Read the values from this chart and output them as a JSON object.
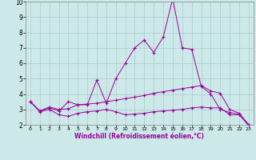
{
  "xlabel": "Windchill (Refroidissement éolien,°C)",
  "background_color": "#cce8e8",
  "line_color": "#990099",
  "grid_color": "#aacccc",
  "xlim": [
    -0.5,
    23.5
  ],
  "ylim": [
    2,
    10
  ],
  "xticks": [
    0,
    1,
    2,
    3,
    4,
    5,
    6,
    7,
    8,
    9,
    10,
    11,
    12,
    13,
    14,
    15,
    16,
    17,
    18,
    19,
    20,
    21,
    22,
    23
  ],
  "yticks": [
    2,
    3,
    4,
    5,
    6,
    7,
    8,
    9,
    10
  ],
  "line1_x": [
    0,
    1,
    2,
    3,
    4,
    5,
    6,
    7,
    8,
    9,
    10,
    11,
    12,
    13,
    14,
    15,
    16,
    17,
    18,
    19,
    20,
    21,
    22,
    23
  ],
  "line1_y": [
    3.5,
    2.9,
    3.1,
    2.9,
    3.5,
    3.3,
    3.3,
    4.9,
    3.4,
    5.0,
    6.0,
    7.0,
    7.5,
    6.7,
    7.7,
    10.2,
    7.0,
    6.9,
    4.5,
    4.0,
    3.0,
    2.8,
    2.7,
    2.0
  ],
  "line2_x": [
    0,
    1,
    2,
    3,
    4,
    5,
    6,
    7,
    8,
    9,
    10,
    11,
    12,
    13,
    14,
    15,
    16,
    17,
    18,
    19,
    20,
    21,
    22,
    23
  ],
  "line2_y": [
    3.5,
    2.9,
    3.15,
    3.0,
    3.05,
    3.3,
    3.35,
    3.4,
    3.5,
    3.6,
    3.7,
    3.8,
    3.9,
    4.05,
    4.15,
    4.25,
    4.35,
    4.45,
    4.55,
    4.2,
    4.05,
    3.0,
    2.75,
    2.0
  ],
  "line3_x": [
    0,
    1,
    2,
    3,
    4,
    5,
    6,
    7,
    8,
    9,
    10,
    11,
    12,
    13,
    14,
    15,
    16,
    17,
    18,
    19,
    20,
    21,
    22,
    23
  ],
  "line3_y": [
    3.5,
    2.85,
    3.0,
    2.65,
    2.55,
    2.75,
    2.85,
    2.9,
    3.0,
    2.85,
    2.65,
    2.7,
    2.75,
    2.85,
    2.9,
    2.95,
    3.0,
    3.1,
    3.15,
    3.1,
    3.1,
    2.65,
    2.65,
    1.95
  ]
}
